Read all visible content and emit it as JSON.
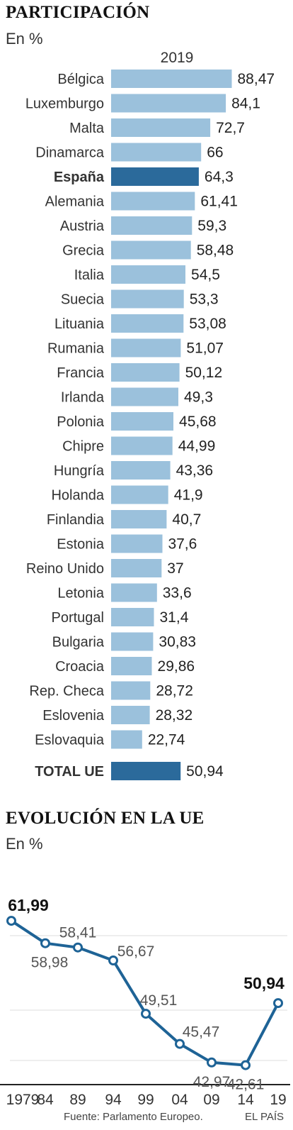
{
  "participacion": {
    "title": "PARTICIPACIÓN",
    "subtitle": "En %",
    "chart_data": {
      "type": "bar",
      "orientation": "horizontal",
      "column_label": "2019",
      "categories": [
        "Bélgica",
        "Luxemburgo",
        "Malta",
        "Dinamarca",
        "España",
        "Alemania",
        "Austria",
        "Grecia",
        "Italia",
        "Suecia",
        "Lituania",
        "Rumania",
        "Francia",
        "Irlanda",
        "Polonia",
        "Chipre",
        "Hungría",
        "Holanda",
        "Finlandia",
        "Estonia",
        "Reino Unido",
        "Letonia",
        "Portugal",
        "Bulgaria",
        "Croacia",
        "Rep. Checa",
        "Eslovenia",
        "Eslovaquia",
        "TOTAL UE"
      ],
      "values": [
        88.47,
        84.1,
        72.7,
        66,
        64.3,
        61.41,
        59.3,
        58.48,
        54.5,
        53.3,
        53.08,
        51.07,
        50.12,
        49.3,
        45.68,
        44.99,
        43.36,
        41.9,
        40.7,
        37.6,
        37,
        33.6,
        31.4,
        30.83,
        29.86,
        28.72,
        28.32,
        22.74,
        50.94
      ],
      "value_labels": [
        "88,47",
        "84,1",
        "72,7",
        "66",
        "64,3",
        "61,41",
        "59,3",
        "58,48",
        "54,5",
        "53,3",
        "53,08",
        "51,07",
        "50,12",
        "49,3",
        "45,68",
        "44,99",
        "43,36",
        "41,9",
        "40,7",
        "37,6",
        "37",
        "33,6",
        "31,4",
        "30,83",
        "29,86",
        "28,72",
        "28,32",
        "22,74",
        "50,94"
      ],
      "highlighted": [
        "España",
        "TOTAL UE"
      ],
      "colors": {
        "default": "#9bc1dc",
        "highlight": "#2b6a9b"
      }
    }
  },
  "evolucion": {
    "title": "EVOLUCIÓN EN LA UE",
    "subtitle": "En %",
    "chart_data": {
      "type": "line",
      "x": [
        "1979",
        "84",
        "89",
        "94",
        "99",
        "04",
        "09",
        "14",
        "19"
      ],
      "values": [
        61.99,
        58.98,
        58.41,
        56.67,
        49.51,
        45.47,
        42.97,
        42.61,
        50.94
      ],
      "value_labels": [
        "61,99",
        "58,98",
        "58,41",
        "56,67",
        "49,51",
        "45,47",
        "42,97",
        "42,61",
        "50,94"
      ],
      "bold_labels": [
        "61,99",
        "50,94"
      ],
      "ylim": [
        40,
        64
      ],
      "grid": true,
      "gridlines": [
        50,
        60
      ],
      "color": "#1e6396"
    }
  },
  "footer": {
    "source": "Fuente: Parlamento Europeo.",
    "brand": "EL PAÍS"
  }
}
